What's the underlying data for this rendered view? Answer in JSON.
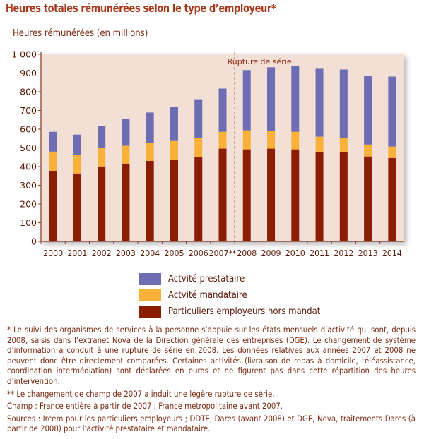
{
  "chart_data": {
    "type": "bar",
    "stacked": true,
    "title": "Heures totales rémunérées selon le type d’employeur*",
    "ylabel": "Heures rémunérées (en millions)",
    "xlabel": "",
    "ylim": [
      0,
      1000
    ],
    "yticks": [
      0,
      100,
      200,
      300,
      400,
      500,
      600,
      700,
      800,
      900,
      1000
    ],
    "ytick_labels": [
      "0",
      "100",
      "200",
      "300",
      "400",
      "500",
      "600",
      "700",
      "800",
      "900",
      "1 000"
    ],
    "categories": [
      "2000",
      "2001",
      "2002",
      "2003",
      "2004",
      "2005",
      "2006",
      "2007**",
      "2008",
      "2009",
      "2010",
      "2011",
      "2012",
      "2013",
      "2014"
    ],
    "series": [
      {
        "name": "Particuliers employeurs hors mandat",
        "color": "#8b1e02",
        "values": [
          378,
          363,
          401,
          416,
          431,
          435,
          450,
          496,
          492,
          496,
          492,
          480,
          477,
          454,
          446
        ]
      },
      {
        "name": "Actvité mandataire",
        "color": "#f9b13a",
        "values": [
          102,
          99,
          98,
          95,
          95,
          102,
          102,
          90,
          102,
          94,
          94,
          80,
          75,
          64,
          61
        ]
      },
      {
        "name": "Actvité prestataire",
        "color": "#6e6db4",
        "values": [
          106,
          109,
          118,
          143,
          163,
          182,
          208,
          231,
          322,
          341,
          352,
          363,
          367,
          367,
          374
        ]
      }
    ],
    "annotation": {
      "text": "Rupture de série",
      "between": [
        "2007**",
        "2008"
      ]
    },
    "legend_position": "bottom",
    "background": "#f2dfd6",
    "grid": false
  },
  "notes": [
    "* Le suivi des organismes de services à la personne s’appuie sur les états mensuels d’activité qui sont, depuis 2008, saisis dans l’extranet Nova de la Direction générale des entreprises (DGE). Le changement de système d’information a conduit à une rupture de série en 2008. Les données relatives aux années 2007 et 2008 ne peuvent donc être directement comparées. Certaines activités (livraison de repas à domicile, téléassistance, coordination intermédiation) sont déclarées en euros et ne figurent pas dans cette répartition des heures d’intervention.",
    "** Le changement de champ de 2007 a induit une légère rupture de série.",
    "Champ : France entière à partir de 2007 ; France métropolitaine avant 2007.",
    "Sources : Ircem pour les particuliers employeurs ; DDTE, Dares (avant 2008) et DGE, Nova, traitements Dares (à partir de 2008) pour l’activité prestataire et mandataire."
  ]
}
